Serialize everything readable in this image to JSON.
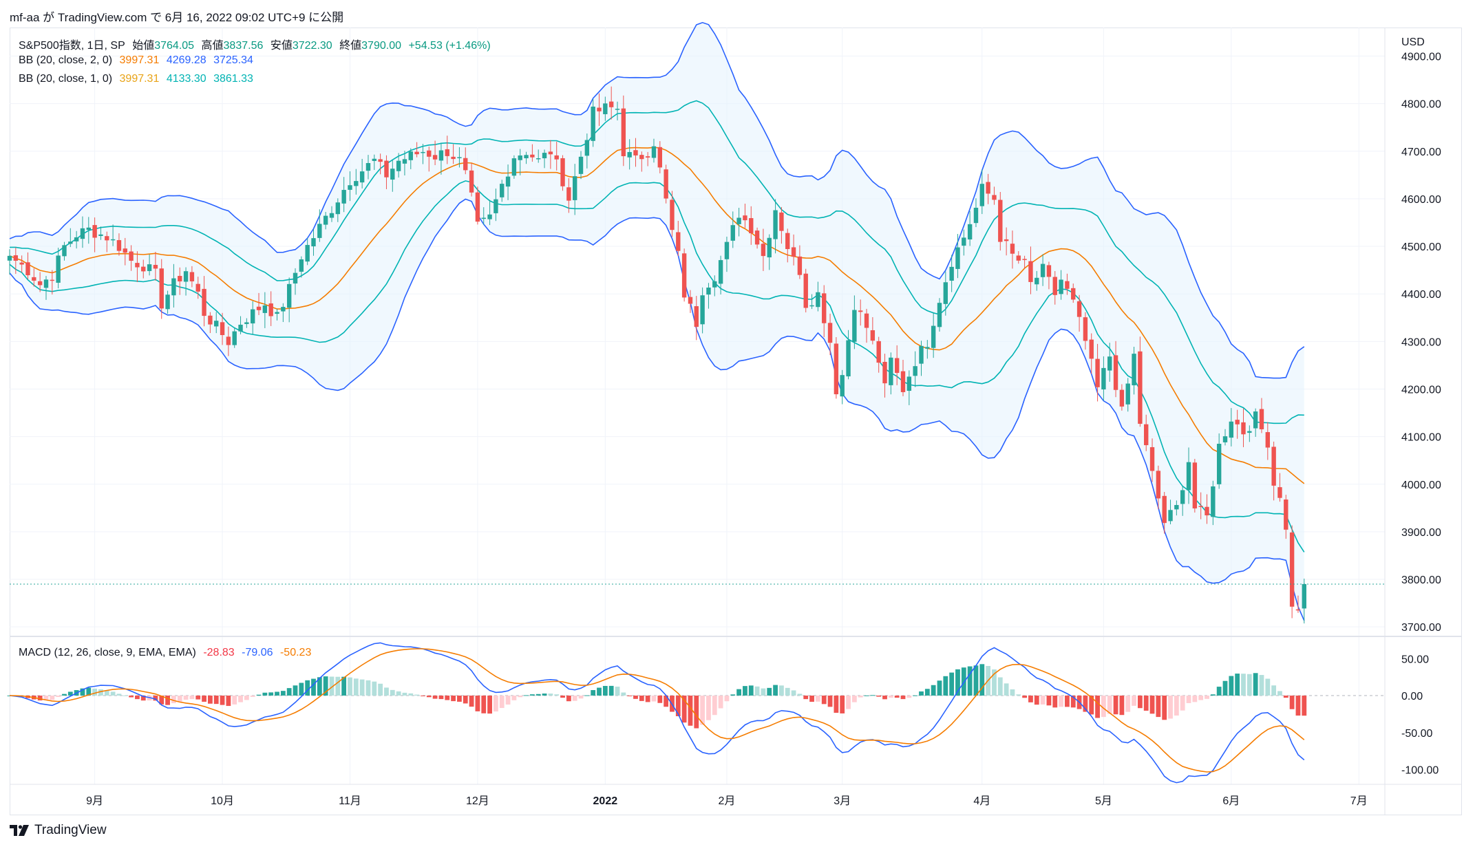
{
  "header": {
    "publisher_line": "mf-aa が TradingView.com で 6月 16, 2022 09:02 UTC+9 に公開"
  },
  "legend": {
    "symbol": "S&P500指数, 1日, SP",
    "open_label": "始値",
    "open_value": "3764.05",
    "high_label": "高値",
    "high_value": "3837.56",
    "low_label": "安値",
    "low_value": "3722.30",
    "close_label": "終値",
    "close_value": "3790.00",
    "change": "+54.53 (+1.46%)",
    "bb2_label": "BB (20, close, 2, 0)",
    "bb2_mid": "3997.31",
    "bb2_upper": "4269.28",
    "bb2_lower": "3725.34",
    "bb1_label": "BB (20, close, 1, 0)",
    "bb1_mid": "3997.31",
    "bb1_upper": "4133.30",
    "bb1_lower": "3861.33",
    "macd_label": "MACD (12, 26, close, 9, EMA, EMA)",
    "macd_hist": "-28.83",
    "macd_line": "-79.06",
    "macd_signal": "-50.23"
  },
  "footer": {
    "brand": "TradingView"
  },
  "colors": {
    "up": "#26a69a",
    "down": "#ef5350",
    "bb_outer": "#2962ff",
    "bb_inner": "#00b3b3",
    "bb_mid": "#f57c00",
    "band_fill": "#e3f2fd",
    "macd_line": "#2962ff",
    "signal_line": "#f57c00",
    "hist_up_strong": "#26a69a",
    "hist_up_weak": "#b2dfdb",
    "hist_down_strong": "#ef5350",
    "hist_down_weak": "#ffcdd2"
  },
  "chart_data": {
    "type": "candlestick",
    "currency": "USD",
    "price_ticks": [
      "4900.00",
      "4800.00",
      "4700.00",
      "4600.00",
      "4500.00",
      "4400.00",
      "4300.00",
      "4200.00",
      "4100.00",
      "4000.00",
      "3900.00",
      "3800.00",
      "3700.00"
    ],
    "price_range": [
      3680,
      4960
    ],
    "macd_ticks": [
      "50.00",
      "0.00",
      "-50.00",
      "-100.00"
    ],
    "macd_range": [
      -120,
      80
    ],
    "time_labels": [
      "9月",
      "10月",
      "11月",
      "12月",
      "2022",
      "2月",
      "3月",
      "4月",
      "5月",
      "6月",
      "7月"
    ],
    "time_label_index": [
      14,
      35,
      56,
      77,
      98,
      118,
      137,
      160,
      180,
      201,
      222
    ],
    "last_price": 3790.0,
    "keypoints_close": [
      [
        0,
        4480
      ],
      [
        3,
        4450
      ],
      [
        5,
        4420
      ],
      [
        7,
        4440
      ],
      [
        9,
        4500
      ],
      [
        11,
        4525
      ],
      [
        13,
        4535
      ],
      [
        16,
        4520
      ],
      [
        18,
        4500
      ],
      [
        20,
        4470
      ],
      [
        22,
        4460
      ],
      [
        24,
        4440
      ],
      [
        25,
        4380
      ],
      [
        27,
        4420
      ],
      [
        29,
        4450
      ],
      [
        31,
        4400
      ],
      [
        32,
        4360
      ],
      [
        34,
        4330
      ],
      [
        36,
        4300
      ],
      [
        38,
        4340
      ],
      [
        40,
        4360
      ],
      [
        42,
        4380
      ],
      [
        44,
        4350
      ],
      [
        46,
        4410
      ],
      [
        48,
        4480
      ],
      [
        50,
        4520
      ],
      [
        52,
        4560
      ],
      [
        54,
        4600
      ],
      [
        56,
        4640
      ],
      [
        58,
        4660
      ],
      [
        60,
        4680
      ],
      [
        62,
        4650
      ],
      [
        64,
        4680
      ],
      [
        66,
        4690
      ],
      [
        68,
        4700
      ],
      [
        70,
        4690
      ],
      [
        72,
        4700
      ],
      [
        74,
        4680
      ],
      [
        75,
        4650
      ],
      [
        76,
        4600
      ],
      [
        77,
        4540
      ],
      [
        79,
        4560
      ],
      [
        81,
        4630
      ],
      [
        83,
        4690
      ],
      [
        85,
        4700
      ],
      [
        87,
        4680
      ],
      [
        89,
        4700
      ],
      [
        91,
        4640
      ],
      [
        92,
        4600
      ],
      [
        94,
        4690
      ],
      [
        96,
        4780
      ],
      [
        98,
        4790
      ],
      [
        100,
        4790
      ],
      [
        101,
        4700
      ],
      [
        103,
        4680
      ],
      [
        105,
        4700
      ],
      [
        106,
        4720
      ],
      [
        107,
        4660
      ],
      [
        109,
        4530
      ],
      [
        110,
        4480
      ],
      [
        111,
        4400
      ],
      [
        112,
        4370
      ],
      [
        113,
        4340
      ],
      [
        114,
        4410
      ],
      [
        116,
        4440
      ],
      [
        118,
        4500
      ],
      [
        120,
        4570
      ],
      [
        122,
        4540
      ],
      [
        124,
        4480
      ],
      [
        126,
        4580
      ],
      [
        128,
        4500
      ],
      [
        129,
        4470
      ],
      [
        130,
        4450
      ],
      [
        131,
        4380
      ],
      [
        133,
        4400
      ],
      [
        135,
        4300
      ],
      [
        136,
        4200
      ],
      [
        137,
        4230
      ],
      [
        139,
        4380
      ],
      [
        141,
        4330
      ],
      [
        143,
        4260
      ],
      [
        144,
        4200
      ],
      [
        145,
        4260
      ],
      [
        147,
        4200
      ],
      [
        149,
        4260
      ],
      [
        151,
        4300
      ],
      [
        153,
        4390
      ],
      [
        155,
        4470
      ],
      [
        157,
        4520
      ],
      [
        159,
        4580
      ],
      [
        160,
        4620
      ],
      [
        162,
        4600
      ],
      [
        163,
        4520
      ],
      [
        165,
        4480
      ],
      [
        167,
        4460
      ],
      [
        168,
        4420
      ],
      [
        170,
        4450
      ],
      [
        172,
        4400
      ],
      [
        173,
        4430
      ],
      [
        175,
        4380
      ],
      [
        177,
        4300
      ],
      [
        179,
        4200
      ],
      [
        181,
        4270
      ],
      [
        183,
        4150
      ],
      [
        185,
        4270
      ],
      [
        186,
        4130
      ],
      [
        188,
        4020
      ],
      [
        190,
        3920
      ],
      [
        192,
        3950
      ],
      [
        194,
        4050
      ],
      [
        195,
        3950
      ],
      [
        197,
        3930
      ],
      [
        199,
        4080
      ],
      [
        201,
        4140
      ],
      [
        203,
        4110
      ],
      [
        205,
        4140
      ],
      [
        207,
        4090
      ],
      [
        208,
        4000
      ],
      [
        209,
        3980
      ],
      [
        210,
        3900
      ],
      [
        211,
        3750
      ],
      [
        212,
        3730
      ],
      [
        213,
        3790
      ]
    ]
  }
}
